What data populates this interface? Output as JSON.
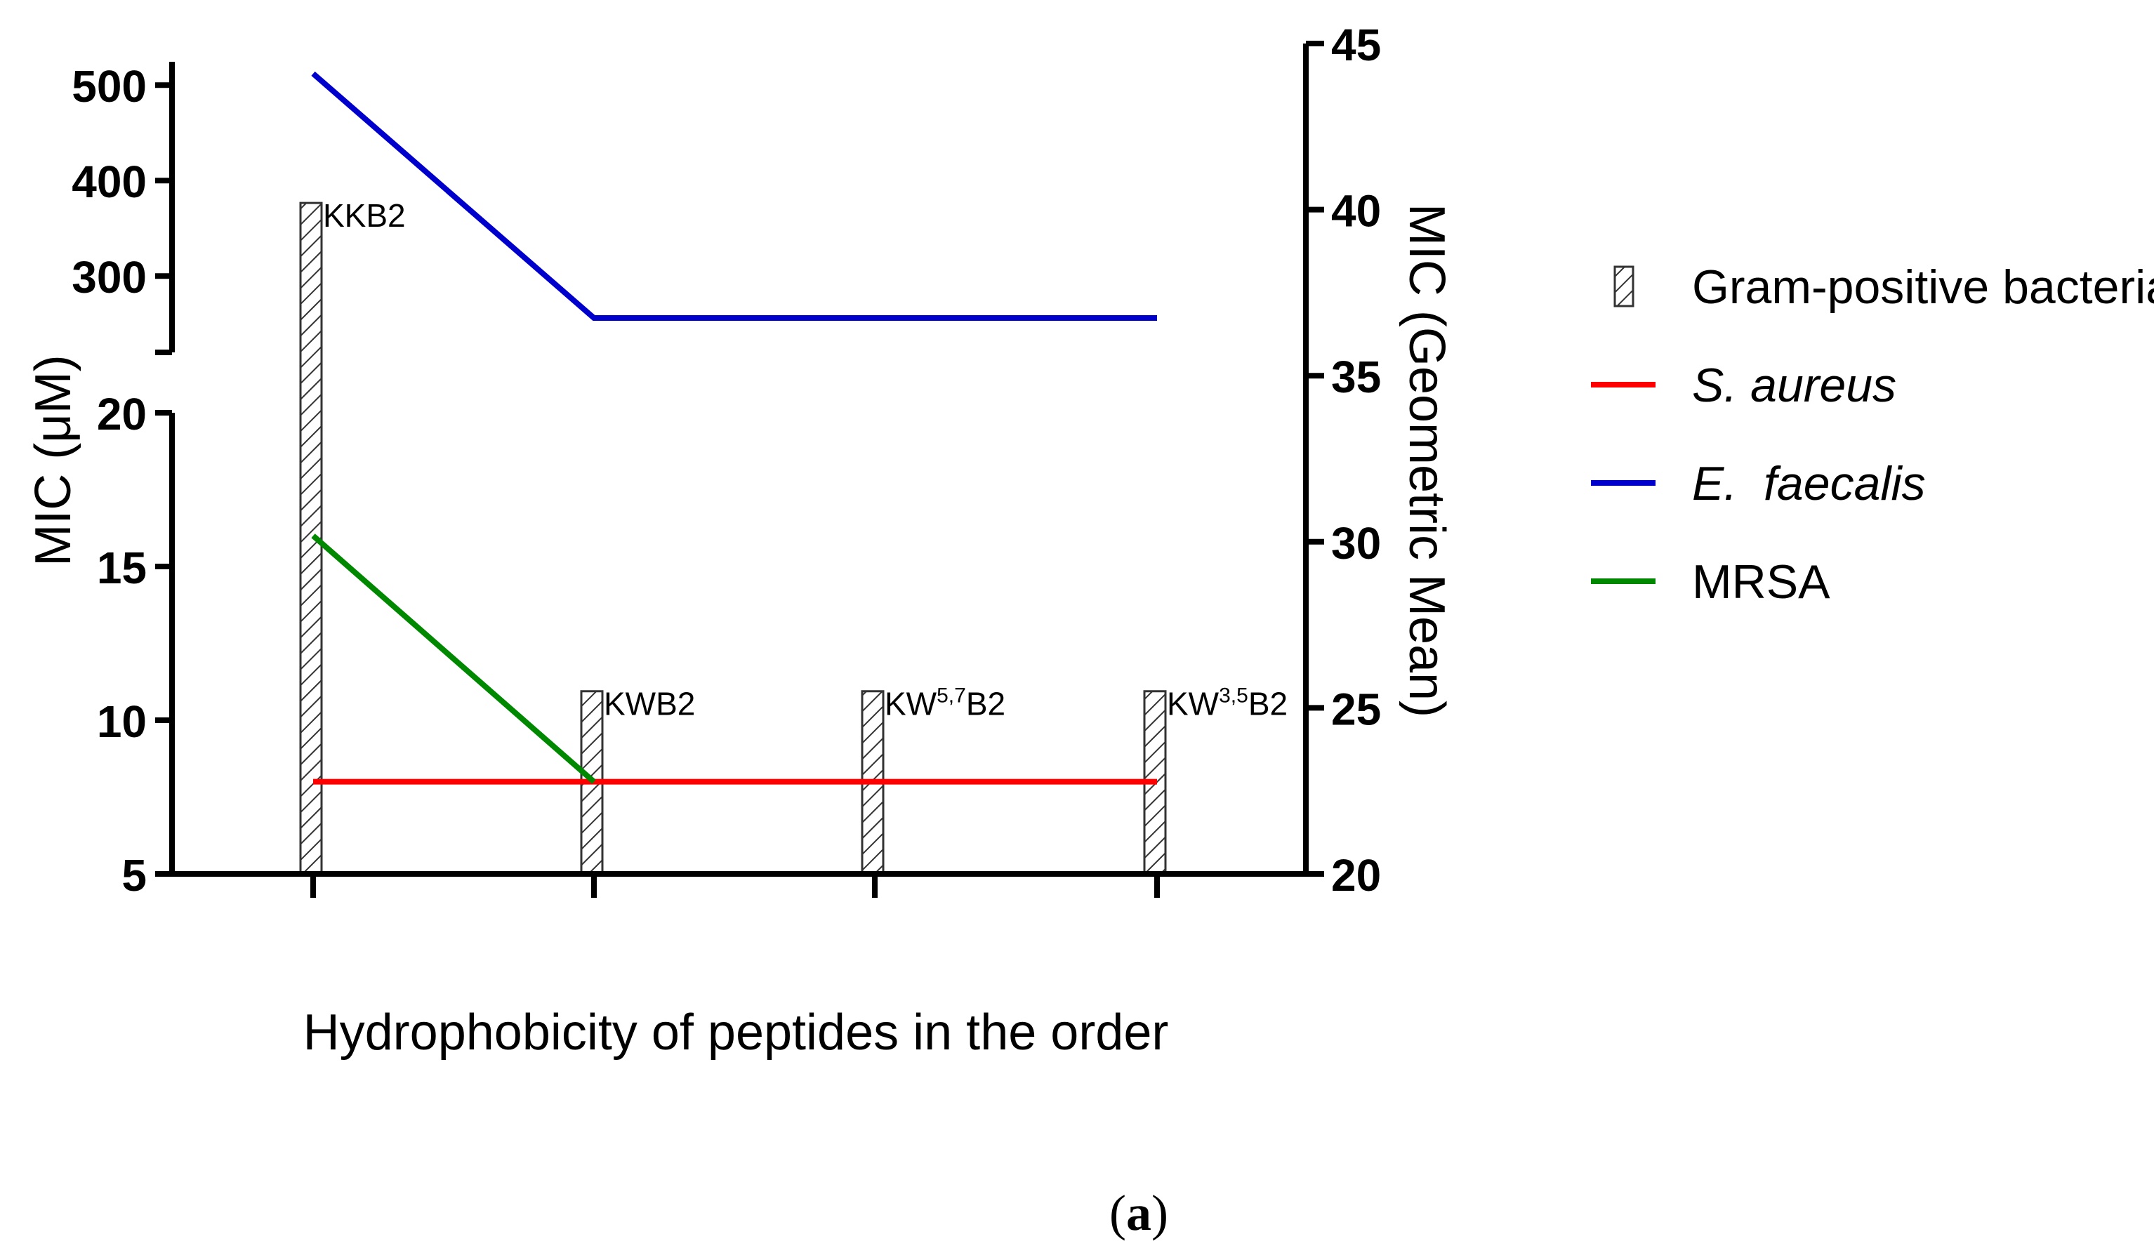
{
  "chart_data": {
    "type": "bar+line",
    "xlabel": "Hydrophobicity of peptides in the order",
    "ylabel_left": "MIC (μM)",
    "ylabel_right": "MIC (Geometric Mean)",
    "caption_open": "(",
    "caption_letter": "a",
    "caption_close": ")",
    "categories": [
      {
        "base": "KKB2",
        "sup": "",
        "suffix": ""
      },
      {
        "base": "KWB2",
        "sup": "",
        "suffix": ""
      },
      {
        "base": "KW",
        "sup": "5,7",
        "suffix": "B2"
      },
      {
        "base": "KW",
        "sup": "3,5",
        "suffix": "B2"
      }
    ],
    "left_axis": {
      "upper": {
        "ticks": [
          300,
          400,
          500
        ],
        "range": [
          220,
          520
        ]
      },
      "lower": {
        "ticks": [
          5,
          10,
          15,
          20
        ],
        "range": [
          5,
          20
        ]
      }
    },
    "right_axis": {
      "ticks": [
        20,
        25,
        30,
        35,
        40,
        45
      ],
      "range": [
        20,
        45
      ]
    },
    "bars": {
      "series_name": "Gram-positive bacteria",
      "values": [
        40.2,
        25.5,
        25.5,
        25.5
      ],
      "axis": "right"
    },
    "series": [
      {
        "name": "S. aureus",
        "italic": true,
        "color": "#ff0000",
        "axis": "left",
        "values": [
          8,
          8,
          8,
          8
        ]
      },
      {
        "name": "E.  faecalis",
        "italic": true,
        "color": "#0000cc",
        "axis": "left",
        "values": [
          512,
          256,
          256,
          256
        ]
      },
      {
        "name": "MRSA",
        "italic": false,
        "color": "#008800",
        "axis": "left",
        "values": [
          16,
          8,
          null,
          null
        ]
      }
    ],
    "legend_position": "right"
  }
}
